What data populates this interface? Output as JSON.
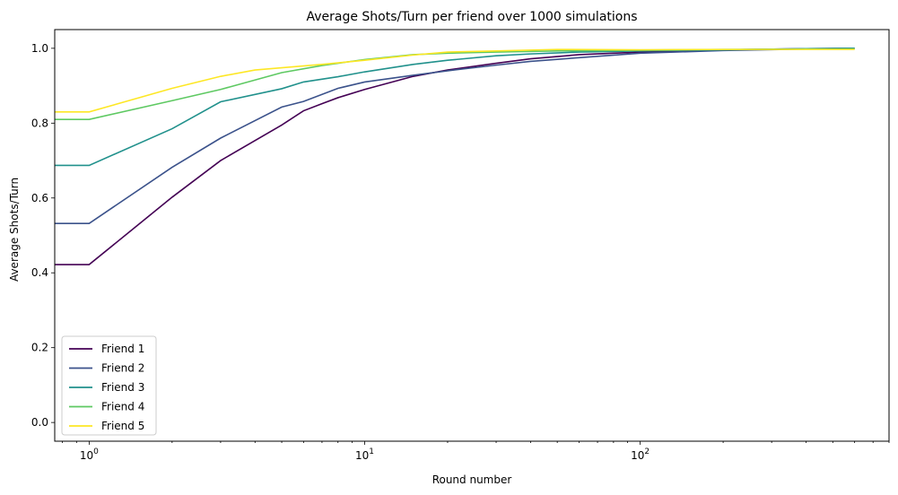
{
  "chart_data": {
    "type": "line",
    "title": "Average Shots/Turn per friend over 1000 simulations",
    "xlabel": "Round number",
    "ylabel": "Average Shots/Turn",
    "xscale": "log",
    "xlim": [
      0.75,
      800
    ],
    "ylim": [
      -0.05,
      1.05
    ],
    "grid": false,
    "legend_position": "lower-left",
    "x_ticks": [
      {
        "value": 1,
        "base": "10",
        "exp": "0"
      },
      {
        "value": 10,
        "base": "10",
        "exp": "1"
      },
      {
        "value": 100,
        "base": "10",
        "exp": "2"
      }
    ],
    "y_ticks": [
      {
        "value": 0.0,
        "label": "0.0"
      },
      {
        "value": 0.2,
        "label": "0.2"
      },
      {
        "value": 0.4,
        "label": "0.4"
      },
      {
        "value": 0.6,
        "label": "0.6"
      },
      {
        "value": 0.8,
        "label": "0.8"
      },
      {
        "value": 1.0,
        "label": "1.0"
      }
    ],
    "series": [
      {
        "name": "Friend 1",
        "color": "#440154",
        "points": [
          [
            0.75,
            0.422
          ],
          [
            1,
            0.422
          ],
          [
            2,
            0.602
          ],
          [
            3,
            0.7
          ],
          [
            5,
            0.795
          ],
          [
            6,
            0.833
          ],
          [
            7,
            0.852
          ],
          [
            8,
            0.868
          ],
          [
            10,
            0.89
          ],
          [
            15,
            0.925
          ],
          [
            20,
            0.942
          ],
          [
            30,
            0.96
          ],
          [
            40,
            0.972
          ],
          [
            60,
            0.983
          ],
          [
            100,
            0.99
          ],
          [
            200,
            0.996
          ],
          [
            400,
            0.999
          ],
          [
            600,
            1.0
          ]
        ]
      },
      {
        "name": "Friend 2",
        "color": "#3b528b",
        "points": [
          [
            0.75,
            0.532
          ],
          [
            1,
            0.532
          ],
          [
            2,
            0.682
          ],
          [
            3,
            0.76
          ],
          [
            5,
            0.843
          ],
          [
            6,
            0.858
          ],
          [
            8,
            0.893
          ],
          [
            10,
            0.91
          ],
          [
            15,
            0.928
          ],
          [
            20,
            0.94
          ],
          [
            30,
            0.955
          ],
          [
            40,
            0.965
          ],
          [
            60,
            0.975
          ],
          [
            100,
            0.987
          ],
          [
            200,
            0.994
          ],
          [
            400,
            0.998
          ],
          [
            600,
            1.0
          ]
        ]
      },
      {
        "name": "Friend 3",
        "color": "#21918c",
        "points": [
          [
            0.75,
            0.687
          ],
          [
            1,
            0.687
          ],
          [
            2,
            0.785
          ],
          [
            3,
            0.857
          ],
          [
            5,
            0.892
          ],
          [
            6,
            0.91
          ],
          [
            8,
            0.924
          ],
          [
            10,
            0.937
          ],
          [
            15,
            0.957
          ],
          [
            20,
            0.968
          ],
          [
            30,
            0.98
          ],
          [
            40,
            0.985
          ],
          [
            60,
            0.99
          ],
          [
            100,
            0.993
          ],
          [
            200,
            0.996
          ],
          [
            400,
            0.999
          ],
          [
            600,
            1.0
          ]
        ]
      },
      {
        "name": "Friend 4",
        "color": "#5ec962",
        "points": [
          [
            0.75,
            0.81
          ],
          [
            1,
            0.81
          ],
          [
            2,
            0.86
          ],
          [
            3,
            0.89
          ],
          [
            5,
            0.935
          ],
          [
            7,
            0.954
          ],
          [
            10,
            0.97
          ],
          [
            15,
            0.983
          ],
          [
            20,
            0.987
          ],
          [
            30,
            0.99
          ],
          [
            50,
            0.993
          ],
          [
            100,
            0.995
          ],
          [
            200,
            0.997
          ],
          [
            400,
            0.998
          ],
          [
            600,
            0.998
          ]
        ]
      },
      {
        "name": "Friend 5",
        "color": "#fde725",
        "points": [
          [
            0.75,
            0.83
          ],
          [
            1,
            0.83
          ],
          [
            2,
            0.893
          ],
          [
            3,
            0.925
          ],
          [
            4,
            0.942
          ],
          [
            5,
            0.948
          ],
          [
            7,
            0.957
          ],
          [
            10,
            0.968
          ],
          [
            15,
            0.982
          ],
          [
            20,
            0.99
          ],
          [
            30,
            0.993
          ],
          [
            50,
            0.997
          ],
          [
            100,
            0.996
          ],
          [
            200,
            0.997
          ],
          [
            400,
            0.997
          ],
          [
            600,
            0.997
          ]
        ]
      }
    ]
  }
}
